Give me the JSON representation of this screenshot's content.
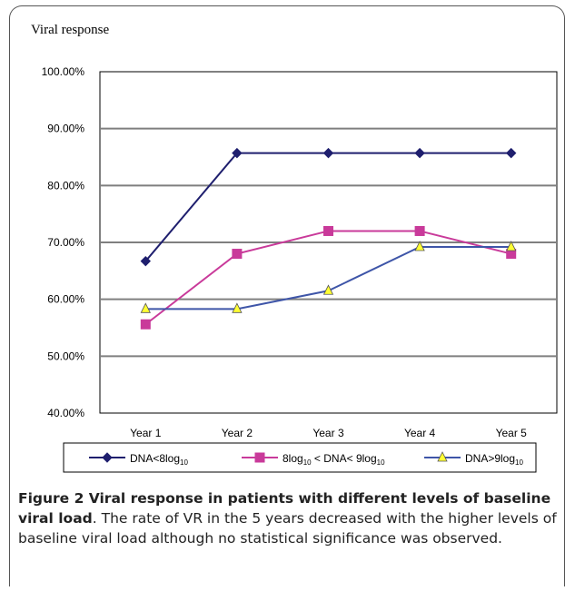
{
  "chart_data": {
    "type": "line",
    "title": "Viral response",
    "categories": [
      "Year 1",
      "Year 2",
      "Year 3",
      "Year 4",
      "Year 5"
    ],
    "ylim": [
      0.4,
      1.0
    ],
    "yticks": [
      "100.00%",
      "90.00%",
      "80.00%",
      "70.00%",
      "60.00%",
      "50.00%",
      "40.00%"
    ],
    "ytick_values": [
      1.0,
      0.9,
      0.8,
      0.7,
      0.6,
      0.5,
      0.4
    ],
    "grid": true,
    "legend_placement": "bottom",
    "series": [
      {
        "legend_main": "DNA<8log",
        "legend_sub": "10",
        "legend_tail": "",
        "values": [
          0.667,
          0.857,
          0.857,
          0.857,
          0.857
        ],
        "color": "#1f1f6e",
        "marker": "diamond",
        "marker_fill": "#1f1f6e"
      },
      {
        "legend_main": "8log",
        "legend_sub": "10",
        "legend_tail": " < DNA< 9log",
        "legend_sub2": "10",
        "values": [
          0.556,
          0.68,
          0.72,
          0.72,
          0.68
        ],
        "color": "#c93a9a",
        "marker": "square",
        "marker_fill": "#c93a9a"
      },
      {
        "legend_main": "DNA>9log",
        "legend_sub": "10",
        "legend_tail": "",
        "values": [
          0.583,
          0.583,
          0.615,
          0.692,
          0.692
        ],
        "color": "#3e55a8",
        "marker": "triangle",
        "marker_fill": "#ffff33"
      }
    ]
  },
  "caption": {
    "bold": "Figure 2 Viral response in patients with different levels of baseline viral load",
    "text": ". The rate of VR in the 5 years decreased with the higher levels of baseline viral load although no statistical significance was observed."
  }
}
